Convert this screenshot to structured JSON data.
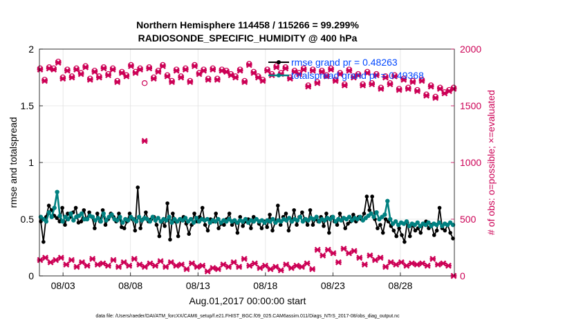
{
  "chart_data": {
    "type": "line",
    "title": "Northern Hemisphere 114458 / 115266 = 99.299%",
    "subtitle": "RADIOSONDE_SPECIFIC_HUMIDITY @ 400 hPa",
    "xlabel": "Aug.01,2017 00:00:00 start",
    "ylabel_left": "rmse and totalspread",
    "ylabel_right": "# of obs: o=possible; ×=evaluated",
    "footnote": "data file: /Users/raeder/DAI/ATM_forcXX/CAM6_setup/f.e21.FHIST_BGC.f09_025.CAM6assim.011/Diags_NTrS_2017-08/obs_diag_output.nc",
    "x_tick_labels": [
      "08/03",
      "08/08",
      "08/13",
      "08/18",
      "08/23",
      "08/28"
    ],
    "x_tick_days": [
      3,
      8,
      13,
      18,
      23,
      28
    ],
    "xlim": [
      1.25,
      32.0
    ],
    "ylim_left": [
      0,
      2
    ],
    "y_ticks_left": [
      "0",
      "0.5",
      "1",
      "1.5",
      "2"
    ],
    "ylim_right": [
      0,
      2000
    ],
    "y_ticks_right": [
      "0",
      "500",
      "1000",
      "1500",
      "2000"
    ],
    "colors": {
      "rmse": "#000000",
      "spread": "#008080",
      "obs": "#cc0055",
      "legend_text": "#0047ff",
      "grid": "#e0e0e0"
    },
    "series": [
      {
        "name": "rmse grand pr = 0.48263",
        "axis": "left",
        "values": [
          0.48,
          0.3,
          0.52,
          0.62,
          0.58,
          0.53,
          0.51,
          0.48,
          0.6,
          0.45,
          0.55,
          0.52,
          0.56,
          0.6,
          0.47,
          0.48,
          0.58,
          0.5,
          0.56,
          0.52,
          0.42,
          0.55,
          0.48,
          0.58,
          0.45,
          0.5,
          0.55,
          0.52,
          0.48,
          0.55,
          0.43,
          0.42,
          0.48,
          0.55,
          0.5,
          0.4,
          0.78,
          0.42,
          0.5,
          0.56,
          0.48,
          0.5,
          0.52,
          0.45,
          0.35,
          0.48,
          0.44,
          0.64,
          0.32,
          0.55,
          0.48,
          0.35,
          0.5,
          0.52,
          0.46,
          0.37,
          0.45,
          0.55,
          0.48,
          0.52,
          0.6,
          0.45,
          0.4,
          0.5,
          0.48,
          0.55,
          0.42,
          0.46,
          0.45,
          0.5,
          0.55,
          0.45,
          0.48,
          0.38,
          0.52,
          0.44,
          0.48,
          0.5,
          0.42,
          0.52,
          0.5,
          0.46,
          0.42,
          0.48,
          0.43,
          0.54,
          0.4,
          0.47,
          0.62,
          0.45,
          0.52,
          0.55,
          0.4,
          0.48,
          0.58,
          0.45,
          0.52,
          0.56,
          0.5,
          0.45,
          0.58,
          0.45,
          0.5,
          0.48,
          0.52,
          0.44,
          0.55,
          0.38,
          0.52,
          0.48,
          0.45,
          0.55,
          0.5,
          0.42,
          0.46,
          0.48,
          0.54,
          0.48,
          0.52,
          0.5,
          0.55,
          0.7,
          0.58,
          0.7,
          0.5,
          0.42,
          0.45,
          0.38,
          0.5,
          0.48,
          0.44,
          0.4,
          0.35,
          0.42,
          0.36,
          0.3,
          0.47,
          0.35,
          0.45,
          0.4,
          0.42,
          0.38,
          0.46,
          0.48,
          0.42,
          0.45,
          0.36,
          0.4,
          0.6,
          0.42,
          0.4,
          0.45,
          0.38,
          0.33
        ]
      },
      {
        "name": "totalspread grand pr = 0.49368",
        "axis": "left",
        "values": [
          0.52,
          0.5,
          0.48,
          0.56,
          0.52,
          0.6,
          0.74,
          0.53,
          0.48,
          0.52,
          0.5,
          0.55,
          0.49,
          0.52,
          0.53,
          0.55,
          0.5,
          0.5,
          0.53,
          0.52,
          0.49,
          0.51,
          0.48,
          0.55,
          0.49,
          0.52,
          0.54,
          0.5,
          0.49,
          0.52,
          0.47,
          0.5,
          0.49,
          0.52,
          0.5,
          0.48,
          0.52,
          0.49,
          0.51,
          0.5,
          0.48,
          0.52,
          0.49,
          0.51,
          0.48,
          0.5,
          0.49,
          0.52,
          0.47,
          0.5,
          0.48,
          0.5,
          0.49,
          0.51,
          0.48,
          0.5,
          0.47,
          0.51,
          0.48,
          0.5,
          0.49,
          0.5,
          0.47,
          0.49,
          0.48,
          0.5,
          0.47,
          0.49,
          0.48,
          0.5,
          0.48,
          0.49,
          0.47,
          0.49,
          0.48,
          0.5,
          0.47,
          0.49,
          0.48,
          0.5,
          0.48,
          0.49,
          0.47,
          0.49,
          0.48,
          0.5,
          0.47,
          0.49,
          0.48,
          0.5,
          0.49,
          0.51,
          0.48,
          0.5,
          0.49,
          0.52,
          0.48,
          0.5,
          0.49,
          0.51,
          0.5,
          0.52,
          0.48,
          0.5,
          0.49,
          0.51,
          0.5,
          0.52,
          0.48,
          0.5,
          0.49,
          0.51,
          0.5,
          0.52,
          0.49,
          0.51,
          0.5,
          0.52,
          0.49,
          0.51,
          0.53,
          0.55,
          0.52,
          0.56,
          0.5,
          0.52,
          0.54,
          0.66,
          0.5,
          0.46,
          0.48,
          0.45,
          0.47,
          0.46,
          0.48,
          0.44,
          0.46,
          0.45,
          0.47,
          0.44,
          0.46,
          0.45,
          0.47,
          0.44,
          0.46,
          0.45,
          0.47,
          0.44,
          0.46,
          0.45,
          0.47,
          0.45
        ]
      },
      {
        "name": "obs possible",
        "axis": "right",
        "marker": "circle",
        "values": [
          1830,
          1730,
          1840,
          1830,
          1890,
          1750,
          1820,
          1760,
          1830,
          1790,
          1850,
          1740,
          1810,
          1760,
          1840,
          1780,
          1830,
          1720,
          1800,
          1770,
          1860,
          1800,
          1830,
          1700,
          1840,
          1750,
          1810,
          1860,
          1770,
          1720,
          1820,
          1760,
          1830,
          1720,
          1860,
          1790,
          1820,
          1740,
          1830,
          1740,
          1820,
          1810,
          1780,
          1760,
          1820,
          1720,
          1870,
          1800,
          1760,
          1730,
          1820,
          1780,
          1850,
          1790,
          1840,
          1750,
          1810,
          1790,
          1830,
          1680,
          1820,
          1710,
          1810,
          1770,
          1830,
          1730,
          1790,
          1690,
          1820,
          1760,
          1780,
          1690,
          1800,
          1700,
          1780,
          1660,
          1760,
          1700,
          1770,
          1650,
          1740,
          1660,
          1720,
          1640,
          1730,
          1600,
          1680,
          1580,
          1660,
          1620,
          1640,
          1660
        ]
      },
      {
        "name": "obs evaluated",
        "axis": "right",
        "marker": "x",
        "values": [
          1820,
          1720,
          1830,
          1820,
          1880,
          1740,
          1810,
          1750,
          1820,
          1780,
          1840,
          1730,
          1800,
          1750,
          1830,
          1770,
          1820,
          1710,
          1790,
          1760,
          1850,
          1790,
          1820,
          1190,
          1830,
          1740,
          1800,
          1850,
          1760,
          1710,
          1810,
          1750,
          1820,
          1710,
          1850,
          1780,
          1810,
          1730,
          1820,
          1730,
          1810,
          1800,
          1770,
          1750,
          1810,
          1710,
          1860,
          1790,
          1750,
          1720,
          1810,
          1770,
          1840,
          1780,
          1830,
          1740,
          1800,
          1780,
          1820,
          1670,
          1810,
          1700,
          1800,
          1760,
          1820,
          1720,
          1780,
          1680,
          1810,
          1750,
          1770,
          1680,
          1790,
          1690,
          1770,
          1650,
          1750,
          1690,
          1760,
          1640,
          1730,
          1650,
          1710,
          1630,
          1720,
          1590,
          1670,
          1570,
          1650,
          1610,
          1630,
          1650
        ]
      },
      {
        "name": "obs count level 400 hPa",
        "axis": "right",
        "marker": "x-lower",
        "values": [
          140,
          160,
          120,
          140,
          160,
          100,
          140,
          80,
          120,
          90,
          150,
          100,
          110,
          90,
          140,
          80,
          120,
          90,
          150,
          100,
          80,
          110,
          90,
          130,
          80,
          120,
          90,
          100,
          60,
          110,
          80,
          90,
          40,
          70,
          60,
          100,
          80,
          120,
          80,
          150,
          90,
          110,
          70,
          90,
          60,
          80,
          50,
          100,
          70,
          90,
          80,
          110,
          60,
          230,
          180,
          230,
          200,
          120,
          240,
          200,
          220,
          160,
          100,
          180,
          140,
          160,
          80,
          120,
          100,
          120,
          90,
          110,
          100,
          110,
          90,
          150,
          100,
          110,
          90,
          0
        ]
      }
    ]
  },
  "legend": {
    "rmse_label": "rmse grand pr = 0.48263",
    "spread_label": "totalspread grand pr = 0.49368"
  }
}
